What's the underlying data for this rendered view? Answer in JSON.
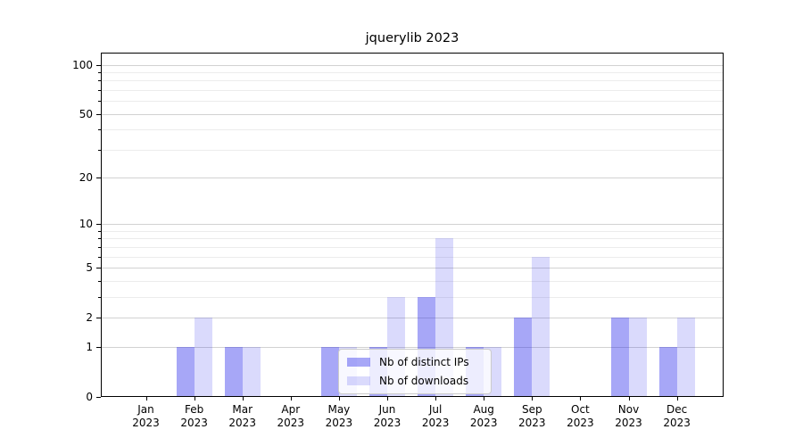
{
  "title": "jquerylib 2023",
  "chart_data": {
    "type": "bar",
    "title": "jquerylib 2023",
    "categories": [
      "Jan",
      "Feb",
      "Mar",
      "Apr",
      "May",
      "Jun",
      "Jul",
      "Aug",
      "Sep",
      "Oct",
      "Nov",
      "Dec"
    ],
    "year": "2023",
    "series": [
      {
        "name": "Nb of distinct IPs",
        "values": [
          0,
          1,
          1,
          0,
          1,
          1,
          3,
          1,
          2,
          0,
          2,
          1
        ],
        "color": "rgba(35,35,235,0.40)"
      },
      {
        "name": "Nb of downloads",
        "values": [
          0,
          2,
          1,
          0,
          1,
          3,
          8,
          1,
          6,
          0,
          2,
          2
        ],
        "color": "rgba(35,35,235,0.17)"
      }
    ],
    "xlabel": "",
    "ylabel": "",
    "y_scale": "log10(1+y)",
    "y_ticks_major": [
      0,
      1,
      2,
      5,
      10,
      20,
      50,
      100
    ],
    "y_ticks_minor": [
      3,
      4,
      6,
      7,
      8,
      9,
      30,
      40,
      60,
      70,
      80,
      90
    ],
    "ylim": [
      0,
      118
    ],
    "grid": "horizontal",
    "legend_position": "lower center"
  },
  "colors": {
    "background": "#ffffff",
    "frame": "#000000",
    "grid_major": "#d2d2d2",
    "grid_minor": "#ececec",
    "text": "#000000",
    "legend_border": "#cccccc",
    "legend_bg": "rgba(255,255,255,0.8)"
  }
}
